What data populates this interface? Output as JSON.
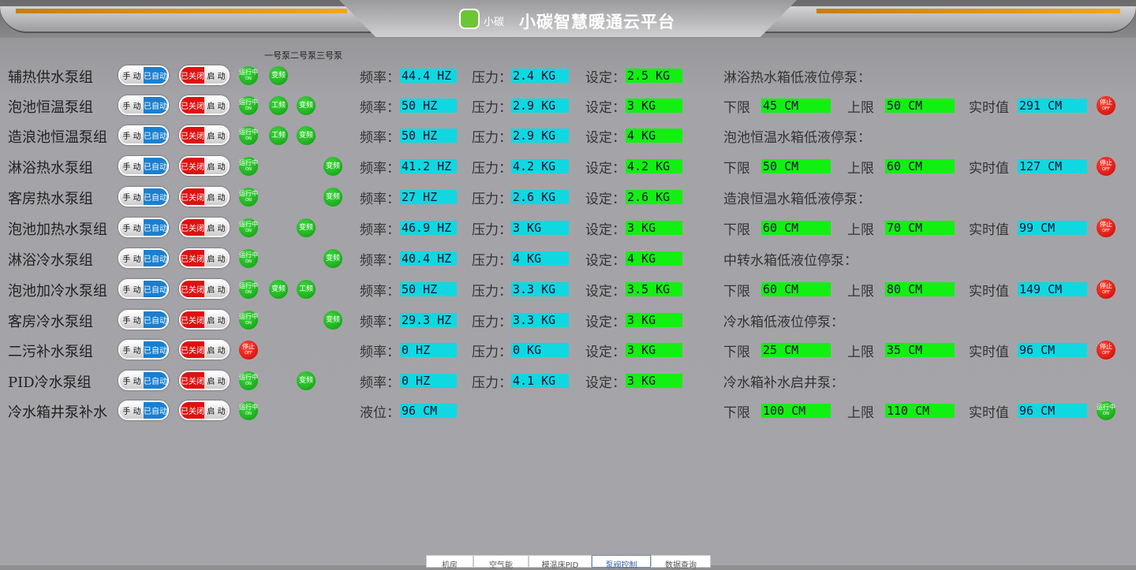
{
  "header": {
    "logo_text": "小碳",
    "title": "小碳智慧暖通云平台"
  },
  "pump_header": "一号泵二号泵三号泵",
  "labels": {
    "freq": "频率：",
    "pressure": "压力：",
    "setpoint": "设定：",
    "level": "液位：",
    "lower": "下限",
    "upper": "上限",
    "realtime": "实时值"
  },
  "switch": {
    "manual": "手 动",
    "auto": "已自动",
    "closed": "已关闭",
    "start": "启 动"
  },
  "indicator": {
    "running": "运行中",
    "running_sub": "ON",
    "stopped": "停止",
    "stopped_sub": "OFF"
  },
  "colors": {
    "cyan": "#10d8e0",
    "green": "#12f012"
  },
  "rows": [
    {
      "name": "辅热供水泵组",
      "status": "running",
      "pumps": [
        "变频",
        "",
        ""
      ],
      "freq": "44.4 HZ",
      "pressure": "2.4 KG",
      "setpoint": "2.5 KG"
    },
    {
      "name": "泡池恒温泵组",
      "status": "running",
      "pumps": [
        "工频",
        "变频",
        ""
      ],
      "freq": "50 HZ",
      "pressure": "2.9 KG",
      "setpoint": "3 KG"
    },
    {
      "name": "造浪池恒温泵组",
      "status": "running",
      "pumps": [
        "工频",
        "变频",
        ""
      ],
      "freq": "50 HZ",
      "pressure": "2.9 KG",
      "setpoint": "4 KG"
    },
    {
      "name": "淋浴热水泵组",
      "status": "running",
      "pumps": [
        "",
        "",
        "变频"
      ],
      "freq": "41.2 HZ",
      "pressure": "4.2 KG",
      "setpoint": "4.2 KG"
    },
    {
      "name": "客房热水泵组",
      "status": "running",
      "pumps": [
        "",
        "",
        "变频"
      ],
      "freq": "27 HZ",
      "pressure": "2.6 KG",
      "setpoint": "2.6 KG"
    },
    {
      "name": "泡池加热水泵组",
      "status": "running",
      "pumps": [
        "",
        "变频",
        ""
      ],
      "freq": "46.9 HZ",
      "pressure": "3 KG",
      "setpoint": "3 KG"
    },
    {
      "name": "淋浴冷水泵组",
      "status": "running",
      "pumps": [
        "",
        "",
        "变频"
      ],
      "freq": "40.4 HZ",
      "pressure": "4 KG",
      "setpoint": "4 KG"
    },
    {
      "name": "泡池加冷水泵组",
      "status": "running",
      "pumps": [
        "变频",
        "工频",
        ""
      ],
      "freq": "50 HZ",
      "pressure": "3.3 KG",
      "setpoint": "3.5 KG"
    },
    {
      "name": "客房冷水泵组",
      "status": "running",
      "pumps": [
        "",
        "",
        "变频"
      ],
      "freq": "29.3 HZ",
      "pressure": "3.3 KG",
      "setpoint": "3 KG"
    },
    {
      "name": "二污补水泵组",
      "status": "stopped",
      "pumps": [
        "",
        "",
        ""
      ],
      "freq": "0 HZ",
      "pressure": "0 KG",
      "setpoint": "3 KG"
    },
    {
      "name": "PID冷水泵组",
      "status": "running",
      "pumps": [
        "",
        "变频",
        ""
      ],
      "freq": "0 HZ",
      "pressure": "4.1 KG",
      "setpoint": "3 KG"
    },
    {
      "name": "冷水箱井泵补水",
      "status": "running",
      "pumps": [
        "",
        "",
        ""
      ],
      "level": "96 CM"
    }
  ],
  "tanks": [
    {
      "title": "淋浴热水箱低液位停泵：",
      "lower": "45 CM",
      "upper": "50 CM",
      "realtime": "291 CM",
      "status": "stopped"
    },
    {
      "title": "泡池恒温水箱低液停泵：",
      "lower": "50 CM",
      "upper": "60 CM",
      "realtime": "127 CM",
      "status": "stopped"
    },
    {
      "title": "造浪恒温水箱低液停泵：",
      "lower": "60 CM",
      "upper": "70 CM",
      "realtime": "99 CM",
      "status": "stopped"
    },
    {
      "title": "中转水箱低液位停泵：",
      "lower": "60 CM",
      "upper": "80 CM",
      "realtime": "149 CM",
      "status": "stopped"
    },
    {
      "title": "冷水箱低液位停泵：",
      "lower": "25 CM",
      "upper": "35 CM",
      "realtime": "96 CM",
      "status": "stopped"
    },
    {
      "title": "冷水箱补水启井泵：",
      "lower": "100 CM",
      "upper": "110 CM",
      "realtime": "96 CM",
      "status": "running"
    }
  ],
  "tabs": [
    {
      "label": "机房",
      "w": 60
    },
    {
      "label": "空气能",
      "w": 70
    },
    {
      "label": "模温床PID",
      "w": 80,
      "active": false
    },
    {
      "label": "泵阀控制",
      "w": 75,
      "active": true
    },
    {
      "label": "数据查询",
      "w": 76
    }
  ]
}
